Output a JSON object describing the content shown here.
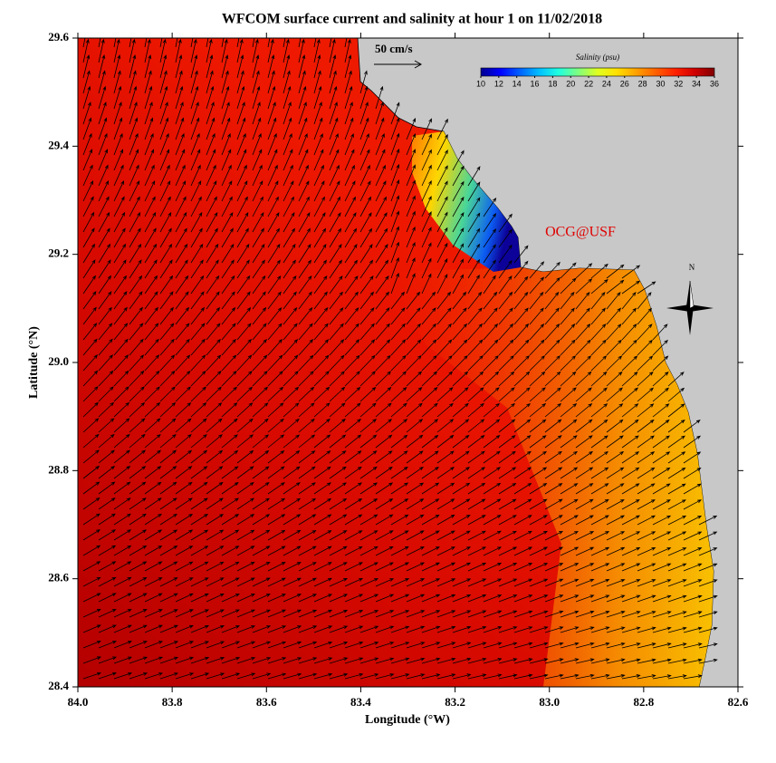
{
  "chart_data": {
    "type": "map",
    "title": "WFCOM surface current and salinity at hour 1 on 11/02/2018",
    "xlabel": "Longitude (°W)",
    "ylabel": "Latitude (°N)",
    "xlim": [
      84,
      82.6
    ],
    "ylim": [
      28.4,
      29.6
    ],
    "xticks": [
      {
        "value": 84,
        "label": "84.0"
      },
      83.8,
      83.6,
      83.4,
      83.2,
      {
        "value": 83,
        "label": "83.0"
      },
      82.8,
      82.6
    ],
    "yticks": [
      28.4,
      28.6,
      28.8,
      {
        "value": 29,
        "label": "29.0"
      },
      29.2,
      29.4,
      29.6
    ],
    "colorbar": {
      "label": "Salinity (psu)",
      "range": [
        10,
        36
      ],
      "ticks": [
        10,
        12,
        14,
        16,
        18,
        20,
        22,
        24,
        26,
        28,
        30,
        32,
        34,
        36
      ],
      "colors": [
        "#00008f",
        "#0000ff",
        "#0060ff",
        "#00bfff",
        "#20ffdf",
        "#80ff80",
        "#dfff20",
        "#ffdf00",
        "#ffa000",
        "#ff6000",
        "#ff2000",
        "#d00000",
        "#800000"
      ]
    },
    "scale_label": "50 cm/s",
    "credit": "OCG@USF",
    "north_label": "N",
    "land_color": "#c8c8c8"
  }
}
